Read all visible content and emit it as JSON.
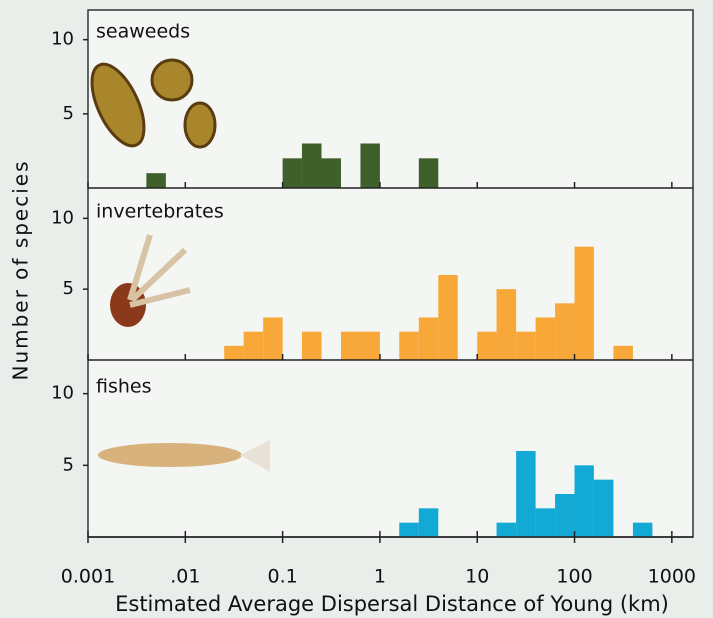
{
  "chart_data": [
    {
      "type": "histogram",
      "title": "seaweeds",
      "color": "#3f5f2b",
      "bins": [
        0.001,
        0.00158,
        0.00251,
        0.00398,
        0.00631,
        0.01,
        0.0158,
        0.0251,
        0.0398,
        0.0631,
        0.1,
        0.158,
        0.251,
        0.398,
        0.631,
        1,
        1.58,
        2.51,
        3.98,
        6.31,
        10,
        15.8,
        25.1,
        39.8,
        63.1,
        100,
        158,
        251,
        398,
        631,
        1000
      ],
      "values": [
        0,
        0,
        0,
        1,
        0,
        0,
        0,
        0,
        0,
        0,
        2,
        3,
        2,
        0,
        3,
        0,
        0,
        2,
        0,
        0,
        0,
        0,
        0,
        0,
        0,
        0,
        0,
        0,
        0,
        0
      ],
      "xlim": [
        0.001,
        1650
      ],
      "log_x": true,
      "ylim": [
        0,
        12
      ],
      "yticks": [
        5,
        10
      ]
    },
    {
      "type": "histogram",
      "title": "invertebrates",
      "color": "#f7a838",
      "ylabel": "Number of species",
      "bins": [
        0.001,
        0.00158,
        0.00251,
        0.00398,
        0.00631,
        0.01,
        0.0158,
        0.0251,
        0.0398,
        0.0631,
        0.1,
        0.158,
        0.251,
        0.398,
        0.631,
        1,
        1.58,
        2.51,
        3.98,
        6.31,
        10,
        15.8,
        25.1,
        39.8,
        63.1,
        100,
        158,
        251,
        398,
        631,
        1000
      ],
      "values": [
        0,
        0,
        0,
        0,
        0,
        0,
        0,
        1,
        2,
        3,
        0,
        2,
        0,
        2,
        2,
        0,
        2,
        3,
        6,
        0,
        2,
        5,
        2,
        3,
        4,
        8,
        0,
        1,
        0,
        0
      ],
      "xlim": [
        0.001,
        1650
      ],
      "log_x": true,
      "ylim": [
        0,
        12
      ],
      "yticks": [
        5,
        10
      ]
    },
    {
      "type": "histogram",
      "title": "fishes",
      "color": "#12a9d4",
      "xlabel": "Estimated Average Dispersal Distance of Young (km)",
      "bins": [
        0.001,
        0.00158,
        0.00251,
        0.00398,
        0.00631,
        0.01,
        0.0158,
        0.0251,
        0.0398,
        0.0631,
        0.1,
        0.158,
        0.251,
        0.398,
        0.631,
        1,
        1.58,
        2.51,
        3.98,
        6.31,
        10,
        15.8,
        25.1,
        39.8,
        63.1,
        100,
        158,
        251,
        398,
        631,
        1000
      ],
      "values": [
        0,
        0,
        0,
        0,
        0,
        0,
        0,
        0,
        0,
        0,
        0,
        0,
        0,
        0,
        0,
        0,
        1,
        2,
        0,
        0,
        0,
        1,
        6,
        2,
        3,
        5,
        4,
        0,
        1,
        0
      ],
      "xlim": [
        0.001,
        1650
      ],
      "log_x": true,
      "ylim": [
        0,
        12
      ],
      "yticks": [
        5,
        10
      ],
      "xticks": [
        0.001,
        {
          "value": 0.01,
          "label": ".01"
        },
        0.1,
        1,
        10,
        100,
        1000
      ]
    }
  ]
}
